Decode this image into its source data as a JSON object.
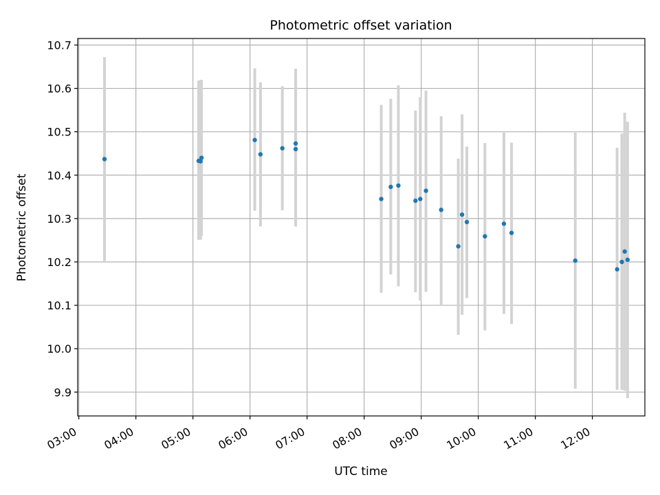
{
  "chart_data": {
    "type": "scatter",
    "title": "Photometric offset variation",
    "xlabel": "UTC time",
    "ylabel": "Photometric offset",
    "x_unit": "hours UTC",
    "xlim": [
      2.98,
      12.92
    ],
    "ylim": [
      9.845,
      10.715
    ],
    "x_ticks": [
      3,
      4,
      5,
      6,
      7,
      8,
      9,
      10,
      11,
      12
    ],
    "x_tick_labels": [
      "03:00",
      "04:00",
      "05:00",
      "06:00",
      "07:00",
      "08:00",
      "09:00",
      "10:00",
      "11:00",
      "12:00"
    ],
    "y_ticks": [
      9.9,
      10.0,
      10.1,
      10.2,
      10.3,
      10.4,
      10.5,
      10.6,
      10.7
    ],
    "y_tick_labels": [
      "9.9",
      "10.0",
      "10.1",
      "10.2",
      "10.3",
      "10.4",
      "10.5",
      "10.6",
      "10.7"
    ],
    "grid": true,
    "marker_color": "#1f77b4",
    "errorbar_color": "#d3d3d3",
    "series": [
      {
        "points": [
          {
            "time": "03:27",
            "y": 10.437,
            "err_low": 10.202,
            "err_high": 10.672
          },
          {
            "time": "05:06",
            "y": 10.433,
            "err_low": 10.251,
            "err_high": 10.618
          },
          {
            "time": "05:08",
            "y": 10.432,
            "err_low": 10.251,
            "err_high": 10.619
          },
          {
            "time": "05:09",
            "y": 10.44,
            "err_low": 10.26,
            "err_high": 10.62
          },
          {
            "time": "06:05",
            "y": 10.481,
            "err_low": 10.318,
            "err_high": 10.646
          },
          {
            "time": "06:11",
            "y": 10.448,
            "err_low": 10.282,
            "err_high": 10.614
          },
          {
            "time": "06:34",
            "y": 10.462,
            "err_low": 10.319,
            "err_high": 10.605
          },
          {
            "time": "06:48",
            "y": 10.473,
            "err_low": 10.282,
            "err_high": 10.645
          },
          {
            "time": "06:48",
            "y": 10.46,
            "err_low": 10.282,
            "err_high": 10.645
          },
          {
            "time": "08:18",
            "y": 10.345,
            "err_low": 10.129,
            "err_high": 10.562
          },
          {
            "time": "08:28",
            "y": 10.373,
            "err_low": 10.171,
            "err_high": 10.576
          },
          {
            "time": "08:36",
            "y": 10.376,
            "err_low": 10.144,
            "err_high": 10.607
          },
          {
            "time": "08:54",
            "y": 10.341,
            "err_low": 10.13,
            "err_high": 10.549
          },
          {
            "time": "08:59",
            "y": 10.345,
            "err_low": 10.111,
            "err_high": 10.58
          },
          {
            "time": "09:05",
            "y": 10.364,
            "err_low": 10.131,
            "err_high": 10.595
          },
          {
            "time": "09:21",
            "y": 10.32,
            "err_low": 10.1,
            "err_high": 10.536
          },
          {
            "time": "09:39",
            "y": 10.236,
            "err_low": 10.032,
            "err_high": 10.438
          },
          {
            "time": "09:43",
            "y": 10.309,
            "err_low": 10.078,
            "err_high": 10.54
          },
          {
            "time": "09:48",
            "y": 10.292,
            "err_low": 10.117,
            "err_high": 10.466
          },
          {
            "time": "10:07",
            "y": 10.259,
            "err_low": 10.042,
            "err_high": 10.474
          },
          {
            "time": "10:27",
            "y": 10.288,
            "err_low": 10.08,
            "err_high": 10.498
          },
          {
            "time": "10:35",
            "y": 10.267,
            "err_low": 10.057,
            "err_high": 10.475
          },
          {
            "time": "11:42",
            "y": 10.203,
            "err_low": 9.908,
            "err_high": 10.498
          },
          {
            "time": "12:26",
            "y": 10.183,
            "err_low": 9.905,
            "err_high": 10.463
          },
          {
            "time": "12:31",
            "y": 10.2,
            "err_low": 9.905,
            "err_high": 10.496
          },
          {
            "time": "12:34",
            "y": 10.224,
            "err_low": 9.903,
            "err_high": 10.544
          },
          {
            "time": "12:37",
            "y": 10.205,
            "err_low": 9.886,
            "err_high": 10.523
          }
        ]
      }
    ]
  }
}
